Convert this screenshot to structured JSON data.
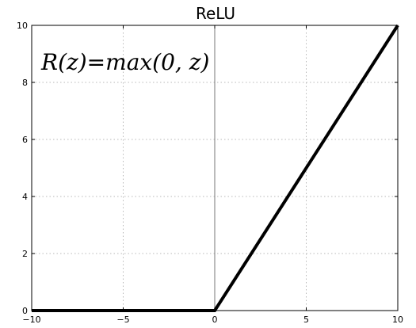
{
  "chart_data": {
    "type": "line",
    "title": "ReLU",
    "annotation": "R(z)=max(0,  z)",
    "xlabel": "",
    "ylabel": "",
    "xlim": [
      -10,
      10
    ],
    "ylim": [
      0,
      10
    ],
    "xticks": [
      -10,
      -5,
      0,
      5,
      10
    ],
    "xtick_labels": [
      "−10",
      "−5",
      "0",
      "5",
      "10"
    ],
    "yticks": [
      0,
      2,
      4,
      6,
      8,
      10
    ],
    "ytick_labels": [
      "0",
      "2",
      "4",
      "6",
      "8",
      "10"
    ],
    "grid": true,
    "legend": false,
    "series": [
      {
        "x": [
          -10,
          0,
          10
        ],
        "y": [
          0,
          0,
          10
        ],
        "color": "#000000"
      }
    ],
    "reference_lines": {
      "vertical_at_x": 0,
      "color": "#777777"
    }
  }
}
